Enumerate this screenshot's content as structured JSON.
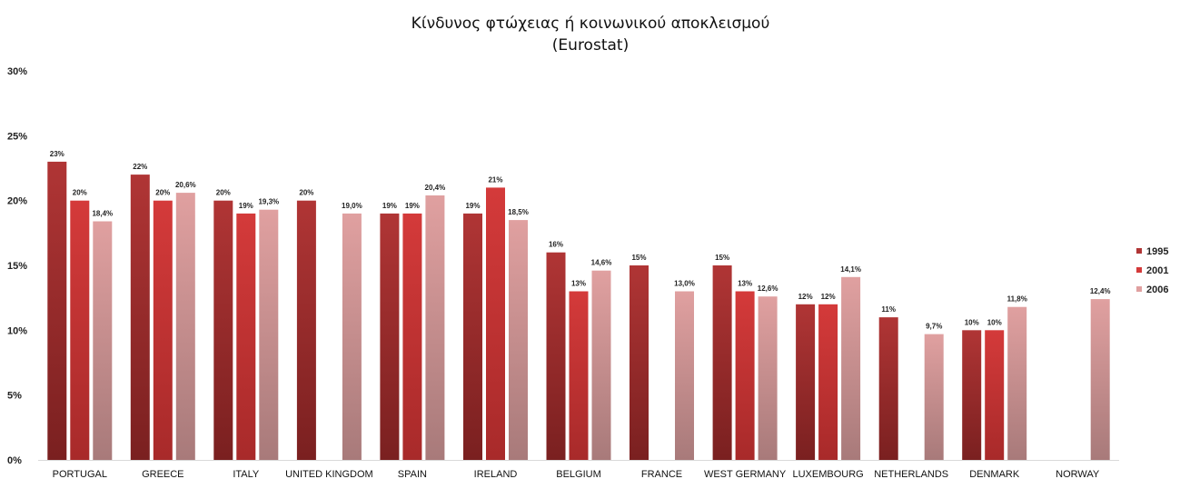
{
  "chart_data": {
    "type": "bar",
    "title": "Κίνδυνος φτώχειας ή κοινωνικού αποκλεισμού",
    "subtitle": "(Eurostat)",
    "xlabel": "",
    "ylabel": "",
    "ylim": [
      0,
      30
    ],
    "yticks": [
      "0%",
      "5%",
      "10%",
      "15%",
      "20%",
      "25%",
      "30%"
    ],
    "ytick_values": [
      0,
      5,
      10,
      15,
      20,
      25,
      30
    ],
    "grid": false,
    "legend_position": "right",
    "categories": [
      "PORTUGAL",
      "GREECE",
      "ITALY",
      "UNITED KINGDOM",
      "SPAIN",
      "IRELAND",
      "BELGIUM",
      "FRANCE",
      "WEST GERMANY",
      "LUXEMBOURG",
      "NETHERLANDS",
      "DENMARK",
      "NORWAY"
    ],
    "series": [
      {
        "name": "1995",
        "color_top": "#b03535",
        "color_bottom": "#7a2020",
        "values": [
          23,
          22,
          20,
          20,
          19,
          19,
          16,
          15,
          15,
          12,
          11,
          10,
          null
        ],
        "labels": [
          "23%",
          "22%",
          "20%",
          "20%",
          "19%",
          "19%",
          "16%",
          "15%",
          "15%",
          "12%",
          "11%",
          "10%",
          ""
        ]
      },
      {
        "name": "2001",
        "color_top": "#d43a3a",
        "color_bottom": "#a82a2a",
        "values": [
          20,
          20,
          19,
          null,
          19,
          21,
          13,
          null,
          13,
          12,
          null,
          10,
          null
        ],
        "labels": [
          "20%",
          "20%",
          "19%",
          "",
          "19%",
          "21%",
          "13%",
          "",
          "13%",
          "12%",
          "",
          "10%",
          ""
        ]
      },
      {
        "name": "2006",
        "color_top": "#e0a0a0",
        "color_bottom": "#a87a7a",
        "values": [
          18.4,
          20.6,
          19.3,
          19.0,
          20.4,
          18.5,
          14.6,
          13.0,
          12.6,
          14.1,
          9.7,
          11.8,
          12.4
        ],
        "labels": [
          "18,4%",
          "20,6%",
          "19,3%",
          "19,0%",
          "20,4%",
          "18,5%",
          "14,6%",
          "13,0%",
          "12,6%",
          "14,1%",
          "9,7%",
          "11,8%",
          "12,4%"
        ]
      }
    ]
  }
}
